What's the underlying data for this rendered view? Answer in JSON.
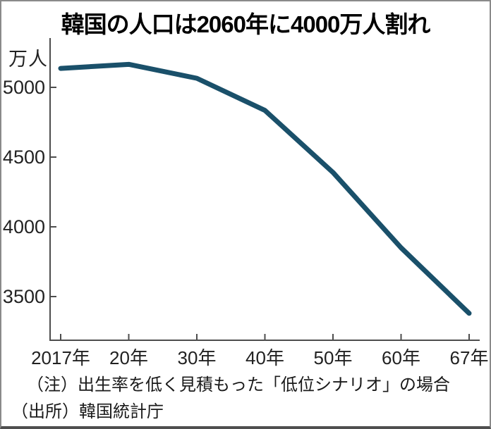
{
  "figure": {
    "title": "韓国の人口は2060年に4000万人割れ",
    "unit_label": "万人",
    "note": "（注）出生率を低く見積もった「低位シナリオ」の場合",
    "source": "（出所）韓国統計庁"
  },
  "chart_data": {
    "type": "line",
    "title": "韓国の人口は2060年に4000万人割れ",
    "ylabel": "万人",
    "x_scale": "categorical-even-spacing",
    "categories": [
      "2017年",
      "20年",
      "30年",
      "40年",
      "50年",
      "60年",
      "67年"
    ],
    "years": [
      2017,
      2020,
      2030,
      2040,
      2050,
      2060,
      2067
    ],
    "series": [
      {
        "name": "韓国の人口（低位シナリオ）",
        "values": [
          5136,
          5165,
          5065,
          4835,
          4390,
          3850,
          3380
        ]
      }
    ],
    "y_ticks": [
      5000,
      4500,
      4000,
      3500
    ],
    "ylim": [
      3190,
      5350
    ],
    "grid": false,
    "legend": "none",
    "line_color": "#1a506a",
    "axis_color": "#4d4d4d",
    "annotations": {
      "note": "（注）出生率を低く見積もった「低位シナリオ」の場合",
      "source": "（出所）韓国統計庁"
    }
  }
}
